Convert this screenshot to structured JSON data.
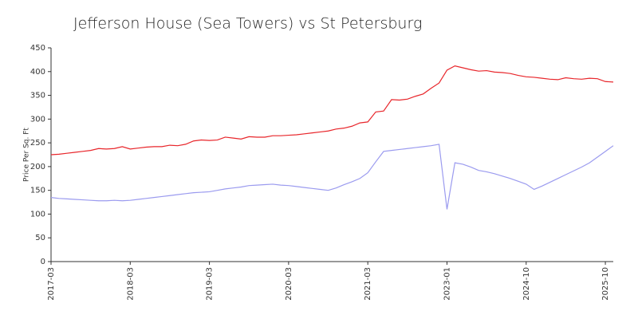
{
  "chart_data": {
    "type": "line",
    "title": "Jefferson House (Sea Towers) vs St Petersburg",
    "y_label": "Price Per Sq. Ft",
    "categories": [
      "2017-03",
      null,
      null,
      null,
      null,
      null,
      null,
      null,
      null,
      null,
      "2018-03",
      null,
      null,
      null,
      null,
      null,
      null,
      null,
      null,
      null,
      "2019-03",
      null,
      null,
      null,
      null,
      null,
      null,
      null,
      null,
      null,
      "2020-03",
      null,
      null,
      null,
      null,
      null,
      null,
      null,
      null,
      null,
      "2021-03",
      null,
      null,
      null,
      null,
      null,
      null,
      null,
      null,
      null,
      "2023-01",
      null,
      null,
      null,
      null,
      null,
      null,
      null,
      null,
      null,
      "2024-10",
      null,
      null,
      null,
      null,
      null,
      null,
      null,
      null,
      null,
      "2025-10",
      null
    ],
    "series": [
      {
        "color": "#e8262b",
        "values": [
          225,
          226,
          228,
          230,
          232,
          234,
          238,
          237,
          238,
          242,
          237,
          239,
          241,
          242,
          242,
          245,
          244,
          247,
          254,
          256,
          255,
          256,
          262,
          260,
          258,
          263,
          262,
          262,
          265,
          265,
          266,
          267,
          269,
          271,
          273,
          275,
          279,
          281,
          285,
          292,
          294,
          315,
          317,
          341,
          340,
          342,
          348,
          353,
          365,
          376,
          403,
          412,
          408,
          404,
          401,
          402,
          399,
          398,
          396,
          392,
          389,
          388,
          386,
          384,
          383,
          387,
          385,
          384,
          386,
          385,
          379,
          378
        ]
      },
      {
        "color": "#9b9bef",
        "values": [
          135,
          133,
          132,
          131,
          130,
          129,
          128,
          128,
          129,
          128,
          129,
          131,
          133,
          135,
          137,
          139,
          141,
          143,
          145,
          146,
          147,
          150,
          153,
          155,
          157,
          160,
          161,
          162,
          163,
          161,
          160,
          158,
          156,
          154,
          152,
          150,
          155,
          162,
          168,
          175,
          187,
          210,
          232,
          234,
          236,
          238,
          240,
          242,
          244,
          247,
          110,
          208,
          205,
          199,
          192,
          189,
          185,
          180,
          175,
          169,
          163,
          152,
          159,
          167,
          175,
          183,
          191,
          199,
          208,
          220,
          232,
          244
        ]
      }
    ],
    "ylim": [
      0,
      450
    ],
    "yticks": [
      0,
      50,
      100,
      150,
      200,
      250,
      300,
      350,
      400,
      450
    ]
  }
}
